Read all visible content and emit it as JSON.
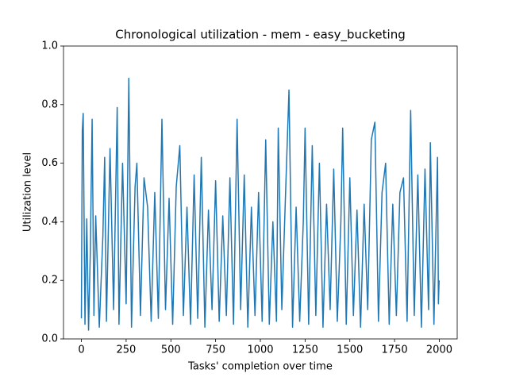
{
  "chart_data": {
    "type": "line",
    "title": "Chronological utilization - mem - easy_bucketing",
    "xlabel": "Tasks' completion over time",
    "ylabel": "Utilization level",
    "x": [
      0,
      5,
      10,
      20,
      30,
      40,
      50,
      60,
      70,
      80,
      100,
      120,
      130,
      140,
      160,
      180,
      200,
      210,
      230,
      250,
      265,
      280,
      300,
      310,
      330,
      350,
      370,
      390,
      410,
      430,
      450,
      470,
      490,
      510,
      530,
      550,
      570,
      590,
      610,
      630,
      650,
      670,
      690,
      710,
      730,
      750,
      770,
      790,
      810,
      830,
      850,
      870,
      890,
      910,
      930,
      950,
      970,
      990,
      1010,
      1030,
      1050,
      1070,
      1090,
      1100,
      1120,
      1140,
      1160,
      1180,
      1200,
      1220,
      1240,
      1250,
      1270,
      1290,
      1310,
      1330,
      1350,
      1370,
      1390,
      1410,
      1430,
      1450,
      1460,
      1480,
      1500,
      1520,
      1540,
      1560,
      1580,
      1600,
      1620,
      1640,
      1660,
      1680,
      1700,
      1720,
      1740,
      1760,
      1780,
      1800,
      1820,
      1840,
      1860,
      1880,
      1900,
      1920,
      1940,
      1950,
      1970,
      1990,
      1995,
      1999
    ],
    "series": [
      {
        "color": "#1f77b4",
        "values": [
          0.07,
          0.71,
          0.77,
          0.05,
          0.41,
          0.03,
          0.3,
          0.75,
          0.08,
          0.42,
          0.04,
          0.35,
          0.62,
          0.06,
          0.65,
          0.1,
          0.79,
          0.05,
          0.6,
          0.12,
          0.89,
          0.04,
          0.52,
          0.6,
          0.08,
          0.55,
          0.45,
          0.06,
          0.5,
          0.07,
          0.75,
          0.1,
          0.48,
          0.05,
          0.52,
          0.66,
          0.08,
          0.45,
          0.05,
          0.56,
          0.07,
          0.62,
          0.04,
          0.44,
          0.1,
          0.54,
          0.06,
          0.42,
          0.08,
          0.55,
          0.05,
          0.75,
          0.1,
          0.56,
          0.04,
          0.45,
          0.08,
          0.5,
          0.06,
          0.68,
          0.05,
          0.4,
          0.06,
          0.72,
          0.1,
          0.48,
          0.85,
          0.04,
          0.45,
          0.06,
          0.4,
          0.72,
          0.05,
          0.66,
          0.08,
          0.6,
          0.04,
          0.46,
          0.1,
          0.58,
          0.06,
          0.4,
          0.72,
          0.05,
          0.55,
          0.08,
          0.44,
          0.04,
          0.46,
          0.1,
          0.68,
          0.74,
          0.06,
          0.5,
          0.6,
          0.05,
          0.46,
          0.08,
          0.5,
          0.55,
          0.06,
          0.78,
          0.08,
          0.56,
          0.04,
          0.58,
          0.1,
          0.67,
          0.05,
          0.62,
          0.12,
          0.2
        ]
      }
    ],
    "xlim": [
      -100,
      2100
    ],
    "xticks": [
      0,
      250,
      500,
      750,
      1000,
      1250,
      1500,
      1750,
      2000
    ],
    "ylim": [
      0,
      1
    ],
    "yticks": [
      {
        "value": 0,
        "label": "0.0"
      },
      0.2,
      0.4,
      0.6,
      0.8,
      {
        "value": 1,
        "label": "1.0"
      }
    ]
  }
}
